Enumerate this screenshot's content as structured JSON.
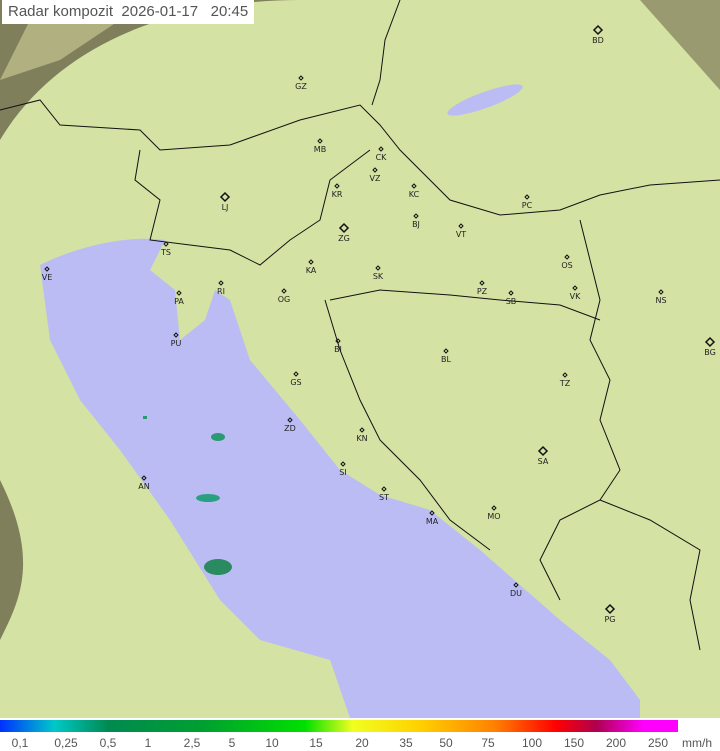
{
  "title": {
    "label": "Radar kompozit",
    "date": "2026-01-17",
    "time": "20:45"
  },
  "legend": {
    "ticks": [
      "0,1",
      "0,25",
      "0,5",
      "1",
      "2,5",
      "5",
      "10",
      "15",
      "20",
      "35",
      "50",
      "75",
      "100",
      "150",
      "200",
      "250"
    ],
    "unit": "mm/h"
  },
  "colors": {
    "land": "#d8e6a8",
    "sea": "#bcbcf4",
    "outside": "#8a8a64",
    "border": "#111111"
  },
  "cities": [
    "GZ",
    "BD",
    "MB",
    "CK",
    "VZ",
    "KR",
    "KC",
    "PC",
    "LJ",
    "ZG",
    "BJ",
    "VT",
    "TS",
    "VE",
    "RI",
    "KA",
    "SK",
    "OS",
    "PA",
    "OG",
    "PZ",
    "SB",
    "VK",
    "NS",
    "PU",
    "BI",
    "BL",
    "BG",
    "GS",
    "TZ",
    "ZD",
    "KN",
    "SA",
    "AN",
    "SI",
    "ST",
    "MO",
    "MA",
    "DU",
    "PG"
  ]
}
